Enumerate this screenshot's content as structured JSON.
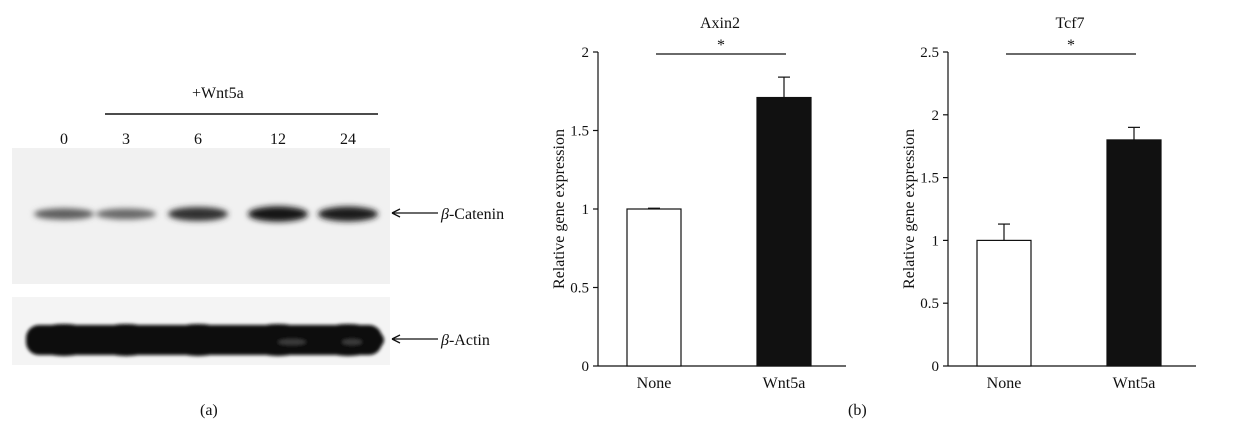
{
  "panel_a": {
    "label": "(a)",
    "treatment_label": "+Wnt5a",
    "lanes": [
      "0",
      "3",
      "6",
      "12",
      "24"
    ],
    "bands": [
      {
        "name": "β-Catenin",
        "symbol": "β",
        "text": "-Catenin",
        "intensity": [
          0.55,
          0.5,
          0.8,
          0.95,
          0.9
        ]
      },
      {
        "name": "β-Actin",
        "symbol": "β",
        "text": "-Actin",
        "intensity": [
          1,
          1,
          1,
          1,
          1
        ]
      }
    ]
  },
  "panel_b": {
    "label": "(b)"
  },
  "chart_data": [
    {
      "type": "bar",
      "title": "Axin2",
      "ylabel": "Relative gene expression",
      "categories": [
        "None",
        "Wnt5a"
      ],
      "values": [
        1.0,
        1.71
      ],
      "errors": [
        0.005,
        0.13
      ],
      "fills": [
        "#ffffff",
        "#111111"
      ],
      "ylim": [
        0,
        2
      ],
      "yticks": [
        "0",
        "0.5",
        "1",
        "1.5",
        "2"
      ],
      "significance": "*"
    },
    {
      "type": "bar",
      "title": "Tcf7",
      "ylabel": "Relative gene expression",
      "categories": [
        "None",
        "Wnt5a"
      ],
      "values": [
        1.0,
        1.8
      ],
      "errors": [
        0.13,
        0.1
      ],
      "fills": [
        "#ffffff",
        "#111111"
      ],
      "ylim": [
        0,
        2.5
      ],
      "yticks": [
        "0",
        "0.5",
        "1",
        "1.5",
        "2",
        "2.5"
      ],
      "significance": "*"
    }
  ]
}
